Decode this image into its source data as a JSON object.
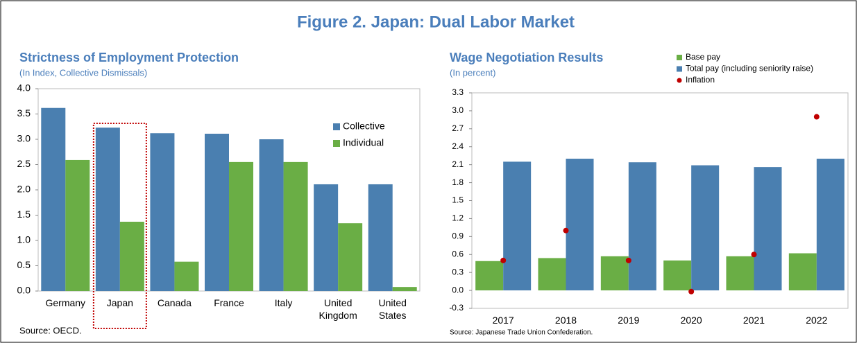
{
  "title": "Figure 2. Japan: Dual Labor Market",
  "chart_data": [
    {
      "type": "bar",
      "title": "Strictness of Employment Protection",
      "subtitle": "(In Index, Collective Dismissals)",
      "categories": [
        "Germany",
        "Japan",
        "Canada",
        "France",
        "Italy",
        "United Kingdom",
        "United States"
      ],
      "series": [
        {
          "name": "Collective",
          "color": "#4a7fb0",
          "values": [
            3.62,
            3.23,
            3.12,
            3.11,
            3.0,
            2.11,
            2.11
          ]
        },
        {
          "name": "Individual",
          "color": "#6aae45",
          "values": [
            2.59,
            1.37,
            0.58,
            2.55,
            2.55,
            1.34,
            0.08
          ]
        }
      ],
      "ylim": [
        0,
        4
      ],
      "yticks": [
        {
          "value": 0,
          "label": "0.0"
        },
        0.5,
        {
          "value": 1,
          "label": "1.0"
        },
        1.5,
        {
          "value": 2,
          "label": "2.0"
        },
        2.5,
        {
          "value": 3,
          "label": "3.0"
        },
        3.5,
        {
          "value": 4,
          "label": "4.0"
        }
      ],
      "highlight": "Japan",
      "legend": "upper right",
      "source": "Source: OECD."
    },
    {
      "type": "bar",
      "title": "Wage Negotiation Results",
      "subtitle": "(In percent)",
      "categories": [
        "2017",
        "2018",
        "2019",
        "2020",
        "2021",
        "2022"
      ],
      "series": [
        {
          "name": "Base pay",
          "color": "#6aae45",
          "values": [
            0.49,
            0.54,
            0.57,
            0.5,
            0.57,
            0.62
          ]
        },
        {
          "name": "Total pay (including seniority raise)",
          "color": "#4a7fb0",
          "values": [
            2.15,
            2.2,
            2.14,
            2.09,
            2.06,
            2.2
          ]
        },
        {
          "name": "Inflation",
          "type": "scatter",
          "color": "#c00000",
          "values": [
            0.5,
            1.0,
            0.5,
            -0.02,
            0.6,
            2.9
          ]
        }
      ],
      "ylim": [
        -0.3,
        3.3
      ],
      "yticks": [
        -0.3,
        {
          "value": 0,
          "label": "0.0"
        },
        0.3,
        0.6,
        0.9,
        1.2,
        1.5,
        1.8,
        2.1,
        2.4,
        2.7,
        {
          "value": 3,
          "label": "3.0"
        },
        3.3
      ],
      "legend": "top",
      "source": "Source: Japanese Trade Union Confederation."
    }
  ]
}
